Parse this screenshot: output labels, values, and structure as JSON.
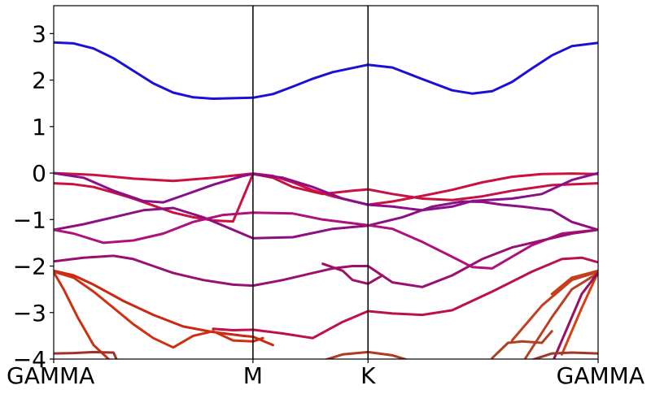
{
  "chart_data": {
    "type": "line",
    "title": "",
    "xlabel": "",
    "ylabel": "",
    "ylim": [
      -4,
      3.6
    ],
    "y_ticks": [
      "3",
      "2",
      "1",
      "0",
      "−1",
      "−2",
      "−3",
      "−4"
    ],
    "y_tick_values": [
      3,
      2,
      1,
      0,
      -1,
      -2,
      -3,
      -4
    ],
    "x_ticks": [
      "GAMMA",
      "M",
      "K",
      "GAMMA"
    ],
    "x_tick_positions": [
      0,
      1,
      1.5774,
      2.7321
    ],
    "xlim": [
      0,
      2.7321
    ],
    "grid": false,
    "legend": "none",
    "series": [
      {
        "color": "#1a10d8",
        "x": [
          0,
          0.1,
          0.2,
          0.3,
          0.4,
          0.5,
          0.6,
          0.7,
          0.8,
          0.9,
          1.0,
          1.1,
          1.2,
          1.3,
          1.4,
          1.5774,
          1.7,
          1.85,
          2.0,
          2.1,
          2.2,
          2.3,
          2.4,
          2.5,
          2.6,
          2.7321
        ],
        "y": [
          2.81,
          2.79,
          2.68,
          2.47,
          2.2,
          1.93,
          1.73,
          1.63,
          1.6,
          1.61,
          1.62,
          1.7,
          1.86,
          2.03,
          2.17,
          2.33,
          2.27,
          2.02,
          1.78,
          1.71,
          1.76,
          1.96,
          2.25,
          2.53,
          2.73,
          2.8
        ]
      },
      {
        "color": "#cc1040",
        "x": [
          0,
          0.2,
          0.4,
          0.6,
          0.8,
          1.0,
          1.1,
          1.2,
          1.3,
          1.4,
          1.5774,
          1.7,
          1.85,
          2.0,
          2.15,
          2.3,
          2.45,
          2.6,
          2.7321
        ],
        "y": [
          0,
          -0.04,
          -0.12,
          -0.17,
          -0.1,
          -0.01,
          -0.06,
          -0.2,
          -0.37,
          -0.5,
          -0.68,
          -0.61,
          -0.49,
          -0.36,
          -0.2,
          -0.08,
          -0.02,
          -0.01,
          -0.02
        ]
      },
      {
        "color": "#cc1040",
        "x": [
          0,
          0.1,
          0.2,
          0.3,
          0.4,
          0.5,
          0.6,
          0.7,
          0.8,
          0.9,
          1.0,
          1.1,
          1.2,
          1.35,
          1.5,
          1.5774
        ],
        "y": [
          -0.22,
          -0.24,
          -0.3,
          -0.42,
          -0.55,
          -0.7,
          -0.85,
          -0.95,
          -1.02,
          -1.04,
          -0.02,
          -0.1,
          -0.3,
          -0.45,
          -0.38,
          -0.35
        ]
      },
      {
        "color": "#c41245",
        "x": [
          1.5774,
          1.7,
          1.85,
          2.0,
          2.15,
          2.3,
          2.5,
          2.7321
        ],
        "y": [
          -0.35,
          -0.45,
          -0.55,
          -0.58,
          -0.5,
          -0.38,
          -0.26,
          -0.22
        ]
      },
      {
        "color": "#8a0f8a",
        "x": [
          0,
          0.15,
          0.3,
          0.45,
          0.55,
          0.65,
          0.8,
          0.95,
          1.0,
          1.15,
          1.3,
          1.45,
          1.5774,
          1.7,
          1.85,
          2.0,
          2.1,
          2.3,
          2.45,
          2.6,
          2.7321
        ],
        "y": [
          0,
          -0.1,
          -0.38,
          -0.6,
          -0.63,
          -0.48,
          -0.25,
          -0.06,
          -0.02,
          -0.1,
          -0.3,
          -0.55,
          -0.68,
          -0.72,
          -0.8,
          -0.72,
          -0.6,
          -0.55,
          -0.45,
          -0.15,
          0
        ]
      },
      {
        "color": "#8c1080",
        "x": [
          0,
          0.15,
          0.3,
          0.45,
          0.6,
          0.75,
          0.9,
          1.0,
          1.2,
          1.4,
          1.5774,
          1.75,
          1.9,
          2.05,
          2.15,
          2.25,
          2.35,
          2.5,
          2.6,
          2.7321
        ],
        "y": [
          -1.22,
          -1.1,
          -0.95,
          -0.8,
          -0.75,
          -0.95,
          -1.22,
          -1.4,
          -1.38,
          -1.2,
          -1.13,
          -0.95,
          -0.72,
          -0.61,
          -0.62,
          -0.68,
          -0.72,
          -0.8,
          -1.05,
          -1.22
        ]
      },
      {
        "color": "#b0107a",
        "x": [
          0,
          0.1,
          0.25,
          0.4,
          0.55,
          0.7,
          0.85,
          1.0,
          1.2,
          1.35,
          1.5774,
          1.7,
          1.85,
          2.0,
          2.1,
          2.2,
          2.4,
          2.55,
          2.7321
        ],
        "y": [
          -1.22,
          -1.3,
          -1.5,
          -1.45,
          -1.3,
          -1.05,
          -0.9,
          -0.85,
          -0.87,
          -1.0,
          -1.12,
          -1.2,
          -1.48,
          -1.8,
          -2.02,
          -2.05,
          -1.55,
          -1.3,
          -1.22
        ]
      },
      {
        "color": "#9a1070",
        "x": [
          0,
          0.15,
          0.3,
          0.4,
          0.5,
          0.6,
          0.75,
          0.9,
          1.0,
          1.15,
          1.3,
          1.4,
          1.5,
          1.5774,
          1.7,
          1.85,
          2.0,
          2.15,
          2.3,
          2.45,
          2.6,
          2.7321
        ],
        "y": [
          -1.9,
          -1.82,
          -1.78,
          -1.85,
          -2.0,
          -2.15,
          -2.3,
          -2.4,
          -2.42,
          -2.3,
          -2.15,
          -2.05,
          -2.0,
          -2.0,
          -2.35,
          -2.45,
          -2.2,
          -1.85,
          -1.6,
          -1.45,
          -1.3,
          -1.22
        ]
      },
      {
        "color": "#a01060",
        "x": [
          1.35,
          1.45,
          1.5,
          1.5774,
          1.65
        ],
        "y": [
          -1.95,
          -2.1,
          -2.3,
          -2.38,
          -2.2
        ]
      },
      {
        "color": "#bb1050",
        "x": [
          1.5774,
          1.7,
          1.85,
          2.0,
          2.2,
          2.4,
          2.55,
          2.65,
          2.7321
        ],
        "y": [
          -2.97,
          -3.02,
          -3.05,
          -2.95,
          -2.55,
          -2.12,
          -1.85,
          -1.82,
          -1.92
        ]
      },
      {
        "color": "#c0104a",
        "x": [
          0.8,
          0.9,
          1.0,
          1.15,
          1.3,
          1.45,
          1.5774
        ],
        "y": [
          -3.35,
          -3.38,
          -3.37,
          -3.45,
          -3.55,
          -3.2,
          -2.97
        ]
      },
      {
        "color": "#cc2810",
        "x": [
          0,
          0.1,
          0.2,
          0.35,
          0.5,
          0.65,
          0.8,
          0.95,
          1.0,
          1.1
        ],
        "y": [
          -2.1,
          -2.2,
          -2.4,
          -2.75,
          -3.05,
          -3.3,
          -3.42,
          -3.5,
          -3.52,
          -3.7
        ]
      },
      {
        "color": "#d03010",
        "x": [
          0,
          0.1,
          0.2,
          0.3,
          0.4,
          0.5,
          0.6,
          0.7,
          0.8,
          0.9,
          1.0,
          1.05
        ],
        "y": [
          -2.12,
          -2.25,
          -2.55,
          -2.9,
          -3.25,
          -3.55,
          -3.75,
          -3.5,
          -3.4,
          -3.6,
          -3.62,
          -3.55
        ]
      },
      {
        "color": "#cc3010",
        "x": [
          0,
          0.05,
          0.12,
          0.2,
          0.3
        ],
        "y": [
          -2.13,
          -2.5,
          -3.1,
          -3.7,
          -4.1
        ]
      },
      {
        "color": "#c84010",
        "x": [
          2.5,
          2.6,
          2.7321
        ],
        "y": [
          -2.6,
          -2.25,
          -2.1
        ]
      },
      {
        "color": "#c04020",
        "x": [
          2.3,
          2.45,
          2.6,
          2.7321
        ],
        "y": [
          -3.6,
          -2.85,
          -2.3,
          -2.12
        ]
      },
      {
        "color": "#b84020",
        "x": [
          2.35,
          2.5,
          2.6,
          2.7321
        ],
        "y": [
          -4.1,
          -3.1,
          -2.5,
          -2.15
        ]
      },
      {
        "color": "#d84010",
        "x": [
          2.55,
          2.65,
          2.7321
        ],
        "y": [
          -3.9,
          -2.9,
          -2.13
        ]
      },
      {
        "color": "#9a1060",
        "x": [
          2.5,
          2.58,
          2.65,
          2.7321
        ],
        "y": [
          -4.1,
          -3.3,
          -2.6,
          -2.14
        ]
      },
      {
        "color": "#a0302a",
        "x": [
          0,
          0.1,
          0.2,
          0.3,
          0.32
        ],
        "y": [
          -3.88,
          -3.87,
          -3.85,
          -3.86,
          -4.05
        ]
      },
      {
        "color": "#b03a20",
        "x": [
          1.3,
          1.45,
          1.5774,
          1.7,
          1.8
        ],
        "y": [
          -4.1,
          -3.9,
          -3.85,
          -3.92,
          -4.05
        ]
      },
      {
        "color": "#a03828",
        "x": [
          2.4,
          2.5,
          2.6,
          2.7321
        ],
        "y": [
          -4.02,
          -3.88,
          -3.86,
          -3.88
        ]
      },
      {
        "color": "#b04020",
        "x": [
          2.2,
          2.28,
          2.35,
          2.45,
          2.5
        ],
        "y": [
          -3.98,
          -3.65,
          -3.62,
          -3.65,
          -3.4
        ]
      }
    ]
  }
}
